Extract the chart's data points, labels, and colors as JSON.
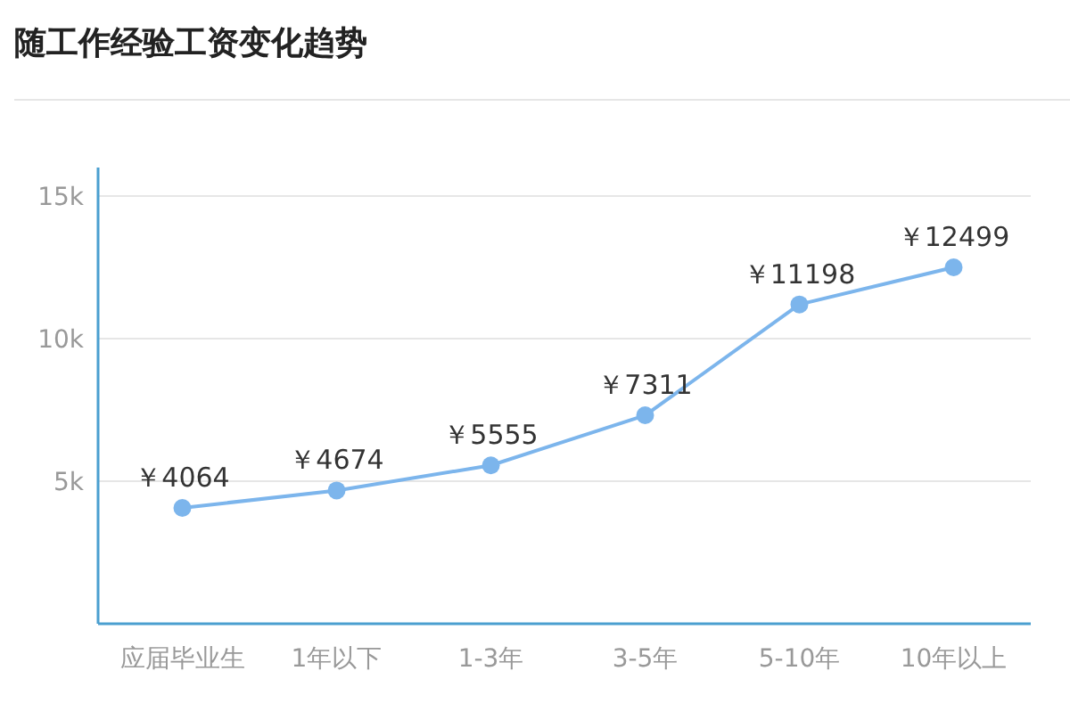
{
  "chart_data": {
    "type": "line",
    "title": "随工作经验工资变化趋势",
    "categories": [
      "应届毕业生",
      "1年以下",
      "1-3年",
      "3-5年",
      "5-10年",
      "10年以上"
    ],
    "series": [
      {
        "color": "#7cb5ec",
        "values": [
          4064,
          4674,
          5555,
          7311,
          11198,
          12499
        ],
        "value_labels": [
          "￥4064",
          "￥4674",
          "￥5555",
          "￥7311",
          "￥11198",
          "￥12499"
        ]
      }
    ],
    "ylim": [
      0,
      16000
    ],
    "yticks": [
      {
        "value": 0,
        "label": null
      },
      {
        "value": 5000,
        "label": "5k"
      },
      {
        "value": 10000,
        "label": "10k"
      },
      {
        "value": 15000,
        "label": "15k"
      }
    ],
    "grid": "y",
    "marker": "circle",
    "line_style": "solid"
  }
}
